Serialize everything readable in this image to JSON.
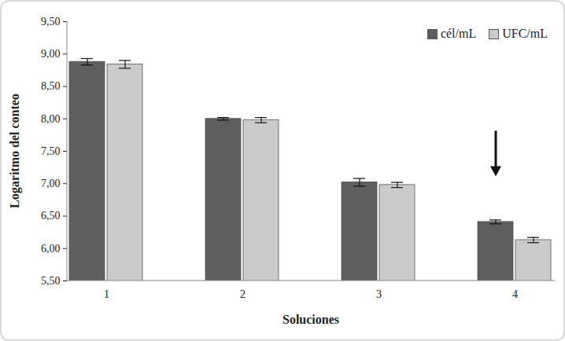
{
  "chart_data": {
    "type": "bar",
    "x_label": "Soluciones",
    "y_label": "Logaritmo del conteo",
    "categories": [
      "1",
      "2",
      "3",
      "4"
    ],
    "series": [
      {
        "name": "cél/mL",
        "color": "#5e5e5e",
        "values": [
          8.88,
          8.0,
          7.02,
          6.41
        ],
        "errors": [
          0.05,
          0.02,
          0.06,
          0.03
        ]
      },
      {
        "name": "UFC/mL",
        "color": "#cbcbcb",
        "values": [
          8.84,
          7.98,
          6.98,
          6.13
        ],
        "errors": [
          0.06,
          0.04,
          0.04,
          0.04
        ]
      }
    ],
    "ylim": [
      5.5,
      9.5
    ],
    "yticks": [
      {
        "value": 5.5,
        "label": "5,50"
      },
      {
        "value": 6.0,
        "label": "6,00"
      },
      {
        "value": 6.5,
        "label": "6,50"
      },
      {
        "value": 7.0,
        "label": "7,00"
      },
      {
        "value": 7.5,
        "label": "7,50"
      },
      {
        "value": 8.0,
        "label": "8,00"
      },
      {
        "value": 8.5,
        "label": "8,50"
      },
      {
        "value": 9.0,
        "label": "9,00"
      },
      {
        "value": 9.5,
        "label": "9,50"
      }
    ],
    "grid": false,
    "legend": "top-right"
  }
}
